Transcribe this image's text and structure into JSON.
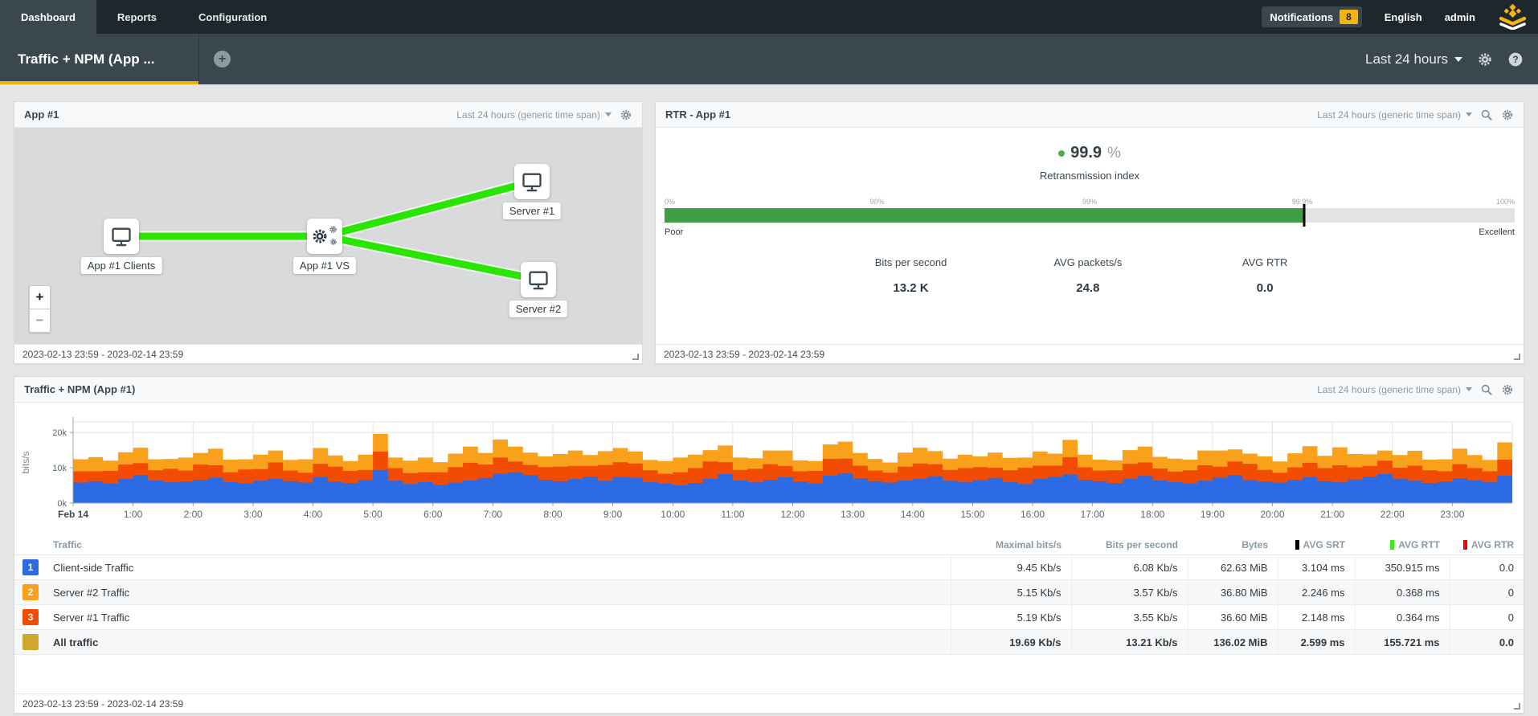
{
  "topbar": {
    "tabs": [
      {
        "label": "Dashboard",
        "active": true
      },
      {
        "label": "Reports",
        "active": false
      },
      {
        "label": "Configuration",
        "active": false
      }
    ],
    "notifications_label": "Notifications",
    "notifications_count": "8",
    "language": "English",
    "user": "admin"
  },
  "toolbar": {
    "dashboard_tab": "Traffic + NPM (App ...",
    "add_tab": "+",
    "time_range": "Last 24 hours"
  },
  "panels": {
    "topology": {
      "title": "App #1",
      "time_span": "Last 24 hours (generic time span)",
      "footer": "2023-02-13 23:59 - 2023-02-14 23:59",
      "zoom_in": "+",
      "zoom_out": "−",
      "link_color": "#29e600",
      "nodes": [
        {
          "label": "App #1 Clients",
          "icon": "monitor-icon"
        },
        {
          "label": "App #1 VS",
          "icon": "gears-icon"
        },
        {
          "label": "Server #1",
          "icon": "monitor-icon"
        },
        {
          "label": "Server #2",
          "icon": "monitor-icon"
        }
      ]
    },
    "rtr": {
      "title": "RTR - App #1",
      "time_span": "Last 24 hours (generic time span)",
      "value": "99.9",
      "value_unit": "%",
      "value_label": "Retransmission index",
      "gauge": {
        "ticks": [
          "0%",
          "90%",
          "99%",
          "99.9%",
          "100%"
        ],
        "tick_positions_pct": [
          0,
          25,
          50,
          75,
          100
        ],
        "fill_pct": 75.2,
        "marker_pct": 75.2,
        "fill_color": "#3f9d44",
        "left_label": "Poor",
        "right_label": "Excellent"
      },
      "stats": [
        {
          "label": "Bits per second",
          "value": "13.2 K"
        },
        {
          "label": "AVG packets/s",
          "value": "24.8"
        },
        {
          "label": "AVG RTR",
          "value": "0.0"
        }
      ],
      "footer": "2023-02-13 23:59 - 2023-02-14 23:59"
    },
    "traffic": {
      "title": "Traffic + NPM (App #1)",
      "time_span": "Last 24 hours (generic time span)",
      "footer": "2023-02-13 23:59 - 2023-02-14 23:59",
      "chart_data": {
        "type": "area",
        "stacked": true,
        "units": "kbit/s",
        "ylabel": "bits/s",
        "yticks": [
          {
            "label": "0k",
            "value": 0
          },
          {
            "label": "10k",
            "value": 10
          },
          {
            "label": "20k",
            "value": 20
          }
        ],
        "ymax": 23,
        "grid": true,
        "x_hours": 24,
        "x_tick_labels": [
          "Feb 14",
          "1:00",
          "2:00",
          "3:00",
          "4:00",
          "5:00",
          "6:00",
          "7:00",
          "8:00",
          "9:00",
          "10:00",
          "11:00",
          "12:00",
          "13:00",
          "14:00",
          "15:00",
          "16:00",
          "17:00",
          "18:00",
          "19:00",
          "20:00",
          "21:00",
          "22:00",
          "23:00"
        ],
        "series": [
          {
            "name": "Client-side Traffic",
            "color": "#2d6be4",
            "values": [
              5.8,
              6.2,
              5.5,
              6.8,
              7.9,
              6.4,
              5.9,
              6.1,
              6.6,
              7.2,
              6.0,
              5.6,
              6.3,
              6.9,
              6.2,
              5.8,
              7.4,
              6.1,
              5.7,
              6.5,
              9.4,
              6.3,
              5.4,
              6.0,
              5.2,
              5.8,
              6.4,
              7.1,
              8.3,
              8.6,
              7.9,
              6.6,
              6.2,
              6.8,
              7.5,
              6.3,
              7.4,
              7.2,
              6.0,
              5.5,
              5.1,
              5.7,
              6.9,
              8.2,
              6.4,
              5.9,
              6.6,
              7.3,
              6.1,
              5.6,
              7.8,
              8.5,
              7.0,
              6.2,
              5.8,
              6.4,
              6.9,
              7.6,
              6.3,
              5.9,
              6.5,
              7.1,
              6.0,
              5.4,
              6.8,
              7.4,
              8.1,
              6.6,
              6.2,
              5.7,
              6.9,
              7.7,
              6.4,
              6.0,
              5.6,
              6.3,
              7.2,
              7.9,
              6.5,
              6.1,
              5.8,
              6.6,
              7.3,
              6.2,
              5.9,
              6.7,
              7.5,
              8.2,
              6.8,
              6.3,
              5.7,
              6.1,
              7.0,
              6.4,
              5.9,
              7.8
            ]
          },
          {
            "name": "Server #1 Traffic",
            "color": "#f24c02",
            "values": [
              3.2,
              2.8,
              3.6,
              4.1,
              3.4,
              2.9,
              3.8,
              3.1,
              4.3,
              3.5,
              2.7,
              3.9,
              3.3,
              4.6,
              3.0,
              2.8,
              3.7,
              4.2,
              3.4,
              2.9,
              5.2,
              3.6,
              3.1,
              2.7,
              3.5,
              4.4,
              5.0,
              3.8,
              4.6,
              3.2,
              2.9,
              3.6,
              4.1,
              3.7,
              3.0,
              4.5,
              4.2,
              4.0,
              3.3,
              2.8,
              3.6,
              4.2,
              4.9,
              3.4,
              3.0,
              3.8,
              4.4,
              3.2,
              2.9,
              3.5,
              4.7,
              4.1,
              3.6,
              3.0,
              2.8,
              3.9,
              4.3,
              3.4,
              3.1,
              4.0,
              3.7,
              2.9,
              3.3,
              4.6,
              3.8,
              3.2,
              4.9,
              3.5,
              3.0,
              3.6,
              4.2,
              3.8,
              3.4,
              2.9,
              3.7,
              4.4,
              3.1,
              3.9,
              4.6,
              3.3,
              2.8,
              3.5,
              4.1,
              3.7,
              4.8,
              3.4,
              3.0,
              3.8,
              3.2,
              4.3,
              3.6,
              2.9,
              4.0,
              3.5,
              3.1,
              4.5
            ]
          },
          {
            "name": "Server #2 Traffic",
            "color": "#f9a11b",
            "values": [
              3.4,
              4.0,
              2.9,
              3.5,
              4.4,
              3.1,
              2.8,
              3.7,
              3.3,
              4.7,
              3.6,
              2.9,
              4.1,
              3.4,
              3.0,
              3.8,
              4.5,
              3.2,
              2.8,
              4.3,
              5.0,
              3.0,
              3.5,
              4.2,
              2.9,
              3.8,
              4.6,
              3.3,
              5.1,
              4.2,
              3.5,
              3.0,
              3.6,
              4.4,
              3.1,
              3.9,
              4.0,
              3.4,
              2.9,
              3.6,
              4.2,
              3.8,
              3.2,
              4.7,
              3.5,
              3.0,
              3.9,
              4.4,
              3.1,
              2.8,
              4.1,
              4.8,
              3.6,
              3.3,
              2.9,
              4.0,
              4.5,
              3.7,
              3.2,
              3.8,
              3.0,
              4.3,
              3.5,
              2.9,
              4.0,
              3.4,
              4.9,
              3.6,
              3.1,
              2.8,
              3.9,
              4.5,
              3.3,
              3.7,
              3.0,
              4.2,
              4.6,
              3.4,
              2.9,
              3.8,
              3.2,
              4.0,
              4.7,
              3.5,
              5.1,
              3.8,
              3.3,
              2.9,
              3.6,
              4.2,
              3.0,
              3.4,
              4.4,
              3.7,
              3.2,
              4.9
            ]
          }
        ]
      },
      "table": {
        "columns": [
          "Traffic",
          "Maximal bits/s",
          "Bits per second",
          "Bytes",
          "AVG SRT",
          "AVG RTT",
          "AVG RTR"
        ],
        "column_icon_colors": {
          "avg_srt": "#000000",
          "avg_rtt": "#3ce81e",
          "avg_rtr": "#f50000"
        },
        "rows": [
          {
            "marker": "1",
            "marker_color": "#2d6be4",
            "name": "Client-side Traffic",
            "bold": false,
            "values": [
              "9.45 Kb/s",
              "6.08 Kb/s",
              "62.63 MiB",
              "3.104 ms",
              "350.915 ms",
              "0.0"
            ]
          },
          {
            "marker": "2",
            "marker_color": "#f9a11b",
            "name": "Server #2 Traffic",
            "bold": false,
            "values": [
              "5.15 Kb/s",
              "3.57 Kb/s",
              "36.80 MiB",
              "2.246 ms",
              "0.368 ms",
              "0"
            ]
          },
          {
            "marker": "3",
            "marker_color": "#f24c02",
            "name": "Server #1 Traffic",
            "bold": false,
            "values": [
              "5.19 Kb/s",
              "3.55 Kb/s",
              "36.60 MiB",
              "2.148 ms",
              "0.364 ms",
              "0"
            ]
          },
          {
            "marker": "",
            "marker_color": "#cfa62e",
            "name": "All traffic",
            "bold": true,
            "values": [
              "19.69 Kb/s",
              "13.21 Kb/s",
              "136.02 MiB",
              "2.599 ms",
              "155.721 ms",
              "0.0"
            ]
          }
        ]
      }
    }
  }
}
